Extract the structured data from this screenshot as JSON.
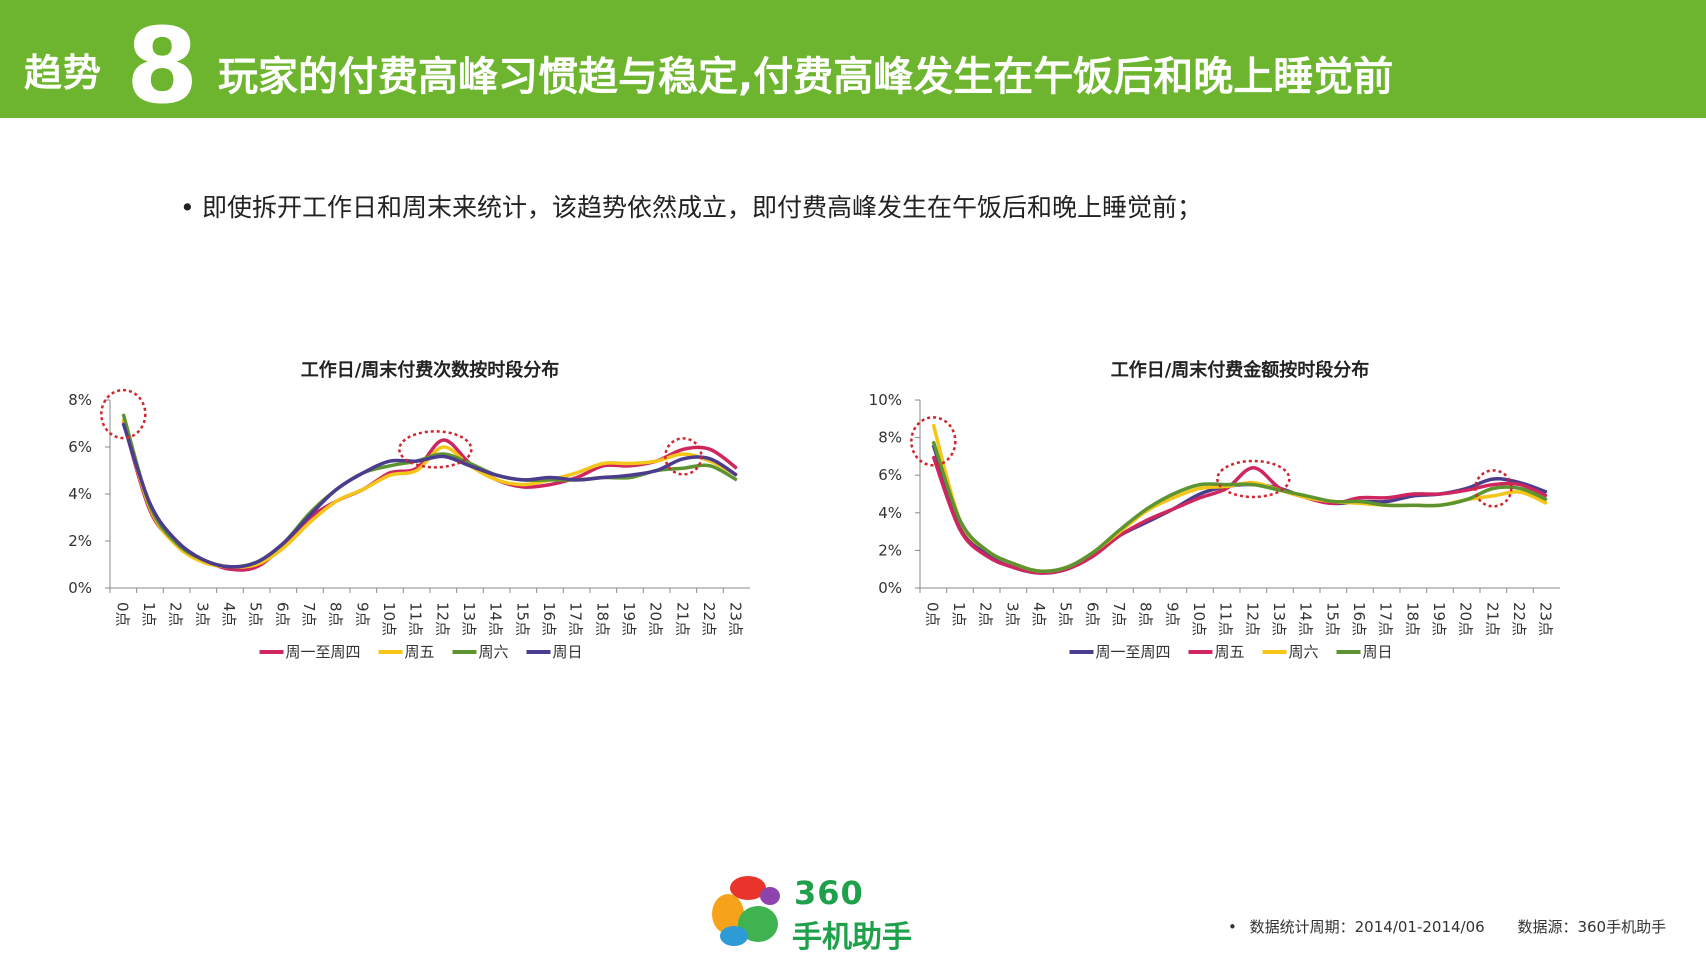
{
  "header": {
    "trend_label": "趋势",
    "trend_number": "8",
    "title": "玩家的付费高峰习惯趋与稳定,付费高峰发生在午饭后和晚上睡觉前"
  },
  "bullet": {
    "symbol": "•",
    "text": "即使拆开工作日和周末来统计，该趋势依然成立，即付费高峰发生在午饭后和晚上睡觉前；"
  },
  "footer": {
    "note_bullet": "•",
    "period_label": "数据统计周期：2014/01-2014/06",
    "source_label": "数据源：360手机助手",
    "logo_number": "360",
    "logo_text": "手机助手"
  },
  "colors": {
    "header_bg": "#6db52e",
    "red": "#d0265f",
    "yellow": "#f5c518",
    "green": "#5d9431",
    "purple": "#4b3c8e",
    "circle": "#d0262e"
  },
  "chart_data": [
    {
      "type": "line",
      "title": "工作日/周末付费次数按时段分布",
      "categories": [
        "0点",
        "1点",
        "2点",
        "3点",
        "4点",
        "5点",
        "6点",
        "7点",
        "8点",
        "9点",
        "10点",
        "11点",
        "12点",
        "13点",
        "14点",
        "15点",
        "16点",
        "17点",
        "18点",
        "19点",
        "20点",
        "21点",
        "22点",
        "23点"
      ],
      "ylim": [
        0,
        8
      ],
      "yticks": [
        "0%",
        "2%",
        "4%",
        "6%",
        "8%"
      ],
      "legend_position": "bottom",
      "series": [
        {
          "name": "周一至周四",
          "color": "#d0265f",
          "values": [
            7.1,
            3.3,
            1.9,
            1.2,
            0.8,
            0.9,
            1.8,
            3.0,
            3.7,
            4.2,
            4.9,
            5.1,
            6.3,
            5.3,
            4.6,
            4.3,
            4.4,
            4.7,
            5.2,
            5.2,
            5.4,
            5.9,
            5.9,
            5.1
          ]
        },
        {
          "name": "周五",
          "color": "#f5c518",
          "values": [
            7.2,
            3.4,
            1.8,
            1.1,
            0.9,
            1.0,
            1.7,
            2.8,
            3.7,
            4.2,
            4.8,
            5.0,
            6.0,
            5.2,
            4.6,
            4.4,
            4.6,
            4.9,
            5.3,
            5.3,
            5.4,
            5.7,
            5.4,
            4.8
          ]
        },
        {
          "name": "周六",
          "color": "#5d9431",
          "values": [
            7.4,
            3.5,
            1.9,
            1.2,
            0.9,
            1.1,
            1.9,
            3.2,
            4.2,
            4.9,
            5.2,
            5.4,
            5.7,
            5.3,
            4.8,
            4.6,
            4.6,
            4.6,
            4.7,
            4.7,
            5.0,
            5.1,
            5.2,
            4.6
          ]
        },
        {
          "name": "周日",
          "color": "#4b3c8e",
          "values": [
            7.0,
            3.6,
            2.0,
            1.2,
            0.9,
            1.1,
            1.9,
            3.1,
            4.2,
            4.9,
            5.4,
            5.4,
            5.6,
            5.2,
            4.8,
            4.6,
            4.7,
            4.6,
            4.7,
            4.8,
            5.0,
            5.5,
            5.5,
            4.8
          ]
        }
      ],
      "highlights": [
        {
          "category": "0点",
          "value": 7.4
        },
        {
          "category": "12点",
          "value": 5.9
        },
        {
          "category": "21点",
          "value": 5.6
        }
      ]
    },
    {
      "type": "line",
      "title": "工作日/周末付费金额按时段分布",
      "categories": [
        "0点",
        "1点",
        "2点",
        "3点",
        "4点",
        "5点",
        "6点",
        "7点",
        "8点",
        "9点",
        "10点",
        "11点",
        "12点",
        "13点",
        "14点",
        "15点",
        "16点",
        "17点",
        "18点",
        "19点",
        "20点",
        "21点",
        "22点",
        "23点"
      ],
      "ylim": [
        0,
        10
      ],
      "yticks": [
        "0%",
        "2%",
        "4%",
        "6%",
        "8%",
        "10%"
      ],
      "legend_position": "bottom",
      "series": [
        {
          "name": "周一至周四",
          "color": "#4b3c8e",
          "values": [
            7.6,
            3.4,
            1.8,
            1.1,
            0.8,
            1.0,
            1.8,
            2.8,
            3.5,
            4.2,
            5.0,
            5.4,
            5.5,
            5.3,
            4.8,
            4.5,
            4.6,
            4.6,
            4.9,
            5.0,
            5.3,
            5.8,
            5.6,
            5.1
          ]
        },
        {
          "name": "周五",
          "color": "#d0265f",
          "values": [
            7.0,
            3.1,
            1.7,
            1.1,
            0.8,
            1.0,
            1.7,
            2.8,
            3.6,
            4.2,
            4.8,
            5.3,
            6.4,
            5.3,
            4.8,
            4.5,
            4.8,
            4.8,
            5.0,
            5.0,
            5.2,
            5.5,
            5.5,
            4.9
          ]
        },
        {
          "name": "周六",
          "color": "#f5c518",
          "values": [
            8.7,
            3.6,
            2.0,
            1.3,
            0.9,
            1.1,
            1.9,
            3.0,
            4.1,
            4.8,
            5.3,
            5.4,
            5.6,
            5.2,
            4.8,
            4.6,
            4.5,
            4.4,
            4.4,
            4.4,
            4.7,
            4.9,
            5.1,
            4.5
          ]
        },
        {
          "name": "周日",
          "color": "#5d9431",
          "values": [
            7.8,
            3.6,
            2.0,
            1.3,
            0.9,
            1.1,
            1.9,
            3.1,
            4.2,
            5.0,
            5.5,
            5.5,
            5.5,
            5.2,
            4.9,
            4.6,
            4.6,
            4.4,
            4.4,
            4.4,
            4.7,
            5.3,
            5.3,
            4.7
          ]
        }
      ],
      "highlights": [
        {
          "category": "0点",
          "value": 7.8
        },
        {
          "category": "12点",
          "value": 5.8
        },
        {
          "category": "21点",
          "value": 5.3
        }
      ]
    }
  ]
}
